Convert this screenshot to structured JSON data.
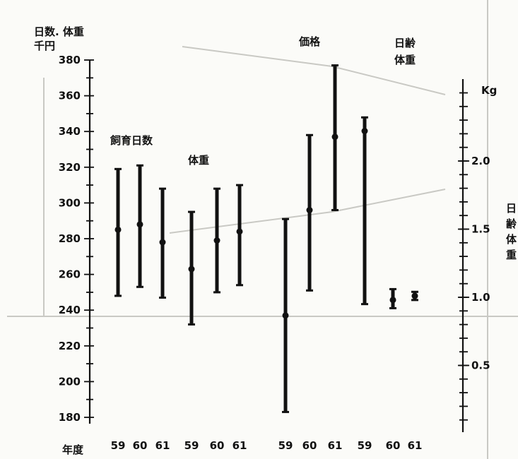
{
  "chart_data": {
    "type": "errorbar",
    "left_axis": {
      "label_line1": "日数. 体重",
      "label_line2": "千円",
      "ticks": [
        180,
        200,
        220,
        240,
        260,
        280,
        300,
        320,
        340,
        360,
        380
      ],
      "range": [
        180,
        380
      ]
    },
    "right_axis": {
      "unit": "Kg",
      "label_chars": [
        "日",
        "齢",
        "体",
        "重"
      ],
      "ticks": [
        0.5,
        1.0,
        1.5,
        2.0
      ],
      "tick_labels": [
        "0.5",
        "1.0",
        "1.5",
        "2.0"
      ]
    },
    "x_axis_label": "年度",
    "groups": [
      {
        "label": "飼育日数",
        "axis": "left",
        "years": [
          "59",
          "60",
          "61"
        ],
        "center": [
          285,
          288,
          278
        ],
        "low": [
          248,
          253,
          247
        ],
        "high": [
          319,
          321,
          308
        ]
      },
      {
        "label": "体重",
        "axis": "left",
        "years": [
          "59",
          "60",
          "61"
        ],
        "center": [
          263,
          279,
          284
        ],
        "low": [
          232,
          250,
          254
        ],
        "high": [
          295,
          308,
          310
        ]
      },
      {
        "label": "価格",
        "axis": "left",
        "years": [
          "59",
          "60",
          "61"
        ],
        "center": [
          237,
          296,
          337
        ],
        "low": [
          183,
          251,
          296
        ],
        "high": [
          291,
          338,
          377
        ]
      },
      {
        "label_line1": "日齢",
        "label_line2": "体重",
        "axis": "right",
        "years": [
          "59",
          "60",
          "61"
        ],
        "center": [
          2.22,
          0.98,
          1.01
        ],
        "low": [
          0.95,
          0.92,
          0.98
        ],
        "high": [
          2.32,
          1.06,
          1.04
        ]
      }
    ]
  }
}
